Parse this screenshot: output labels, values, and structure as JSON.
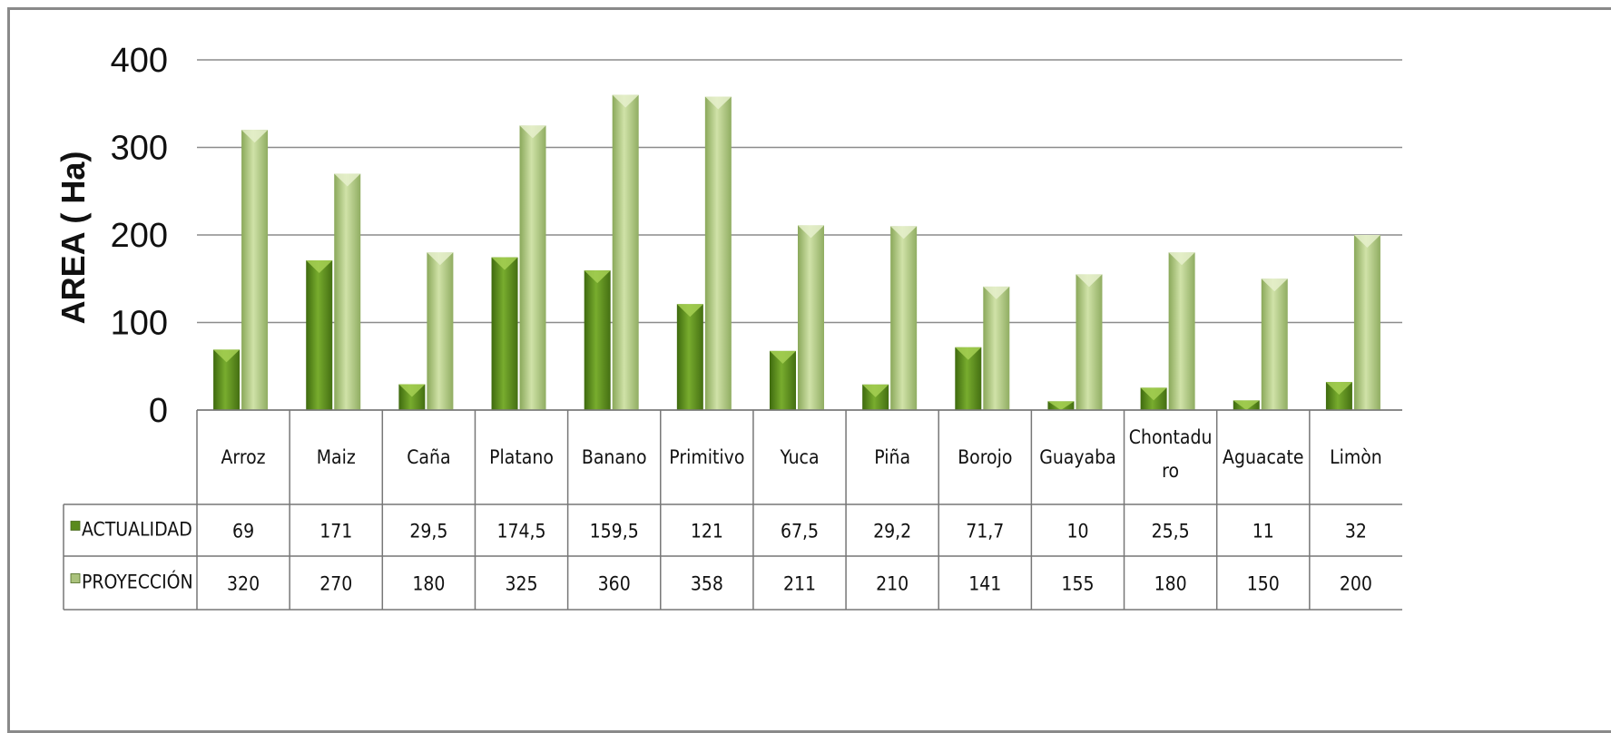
{
  "chart_data": {
    "type": "bar",
    "ylabel": "AREA ( Ha)",
    "ylim": [
      0,
      400
    ],
    "yticks": [
      "0",
      "100",
      "200",
      "300",
      "400"
    ],
    "grid": true,
    "categories": [
      "Arroz",
      "Maiz",
      "Caña",
      "Platano",
      "Banano",
      "Primitivo",
      "Yuca",
      "Piña",
      "Borojo",
      "Guayaba",
      "Chontadu ro",
      "Aguacate",
      "Limòn"
    ],
    "series": [
      {
        "name": "ACTUALIDAD",
        "color": "#5a8a1e",
        "values": [
          69,
          171,
          29.5,
          174.5,
          159.5,
          121,
          67.5,
          29.2,
          71.7,
          10,
          25.5,
          11,
          32
        ],
        "labels": [
          "69",
          "171",
          "29,5",
          "174,5",
          "159,5",
          "121",
          "67,5",
          "29,2",
          "71,7",
          "10",
          "25,5",
          "11",
          "32"
        ]
      },
      {
        "name": "PROYECCIÓN",
        "color": "#aac27c",
        "values": [
          320,
          270,
          180,
          325,
          360,
          358,
          211,
          210,
          141,
          155,
          180,
          150,
          200
        ],
        "labels": [
          "320",
          "270",
          "180",
          "325",
          "360",
          "358",
          "211",
          "210",
          "141",
          "155",
          "180",
          "150",
          "200"
        ]
      }
    ],
    "legend": "data table"
  }
}
